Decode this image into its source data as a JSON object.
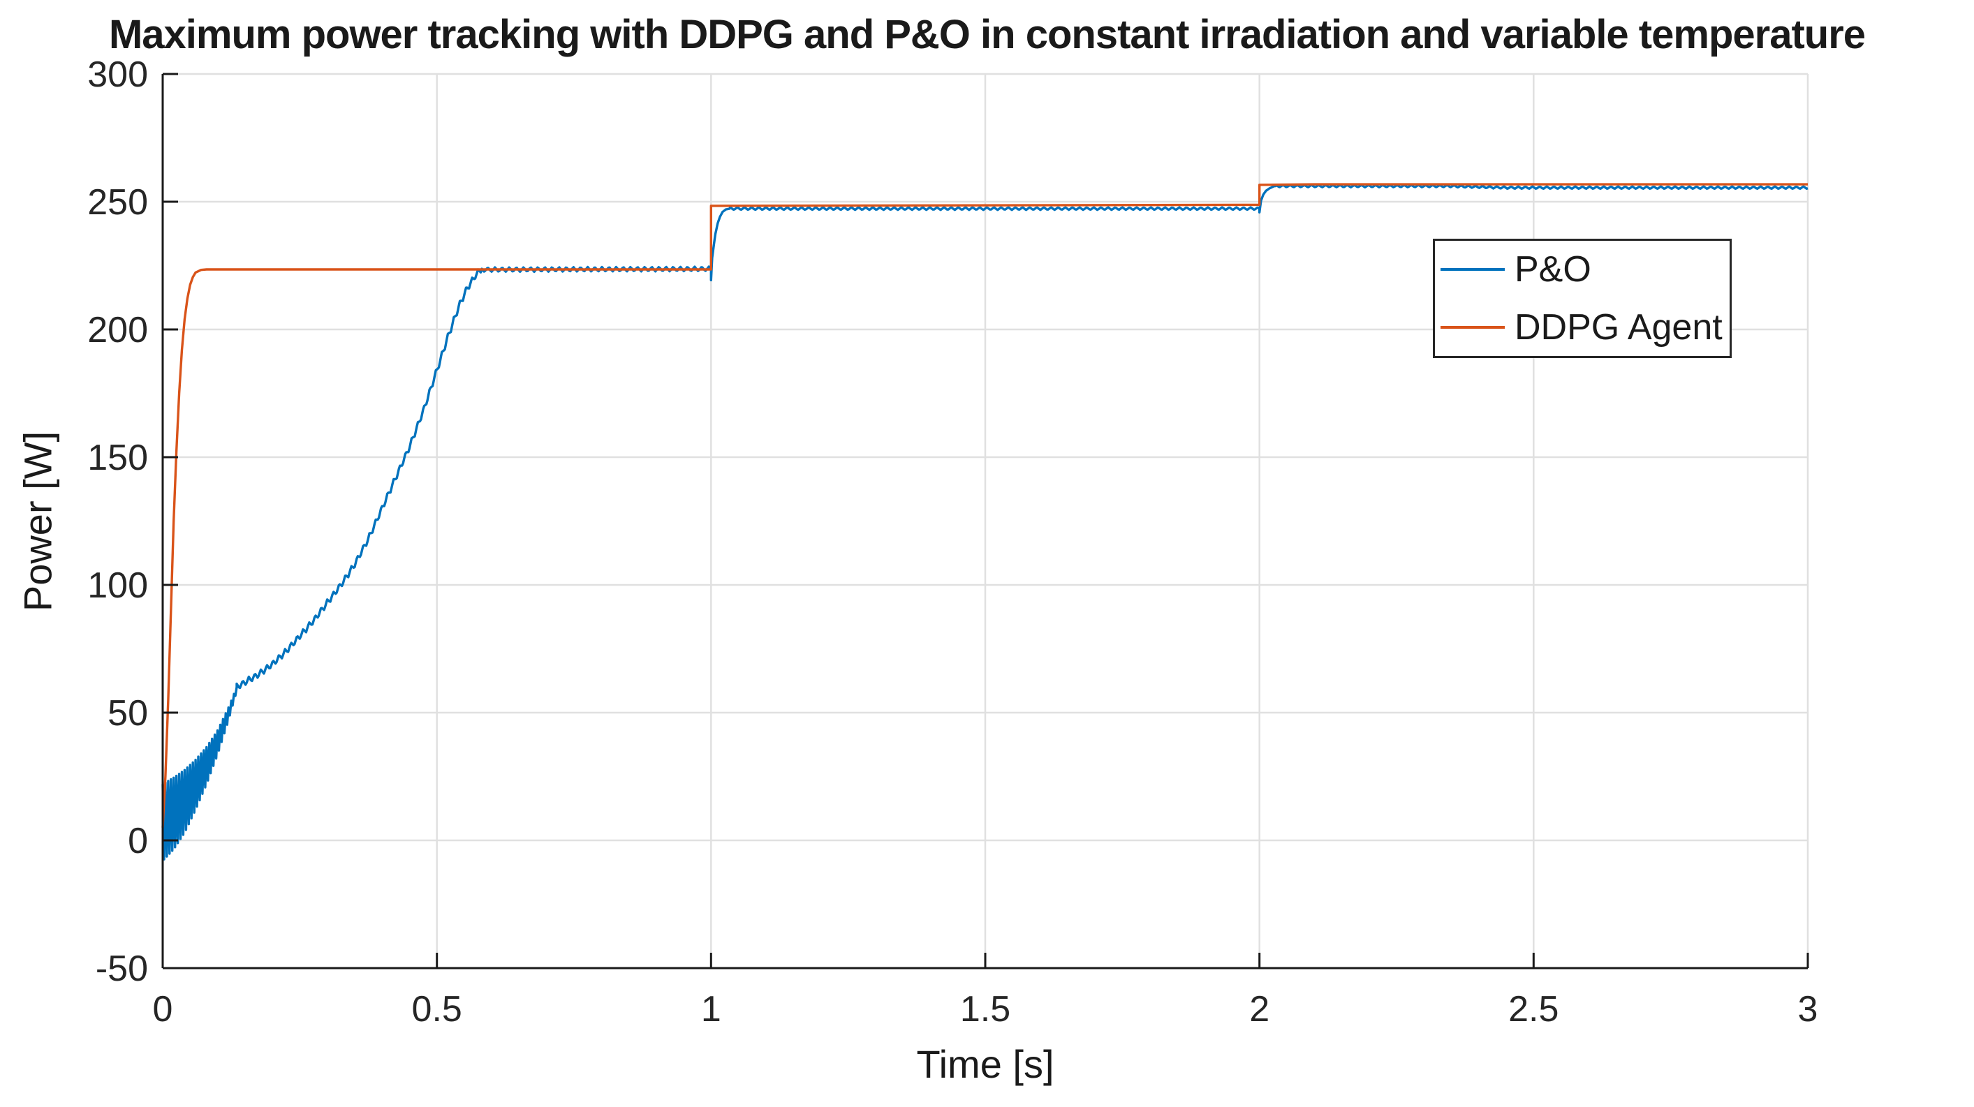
{
  "title": "Maximum power tracking with DDPG and P&O in constant irradiation and variable temperature",
  "axes": {
    "xlabel": "Time [s]",
    "ylabel": "Power [W]"
  },
  "colors": {
    "background": "#ffffff",
    "grid": "#e0e0e0",
    "axis": "#1a1a1a",
    "tick_label": "#262626",
    "legend_border": "#262626",
    "pando_blue": "#0072BD",
    "ddpg_orange": "#D95319"
  },
  "chart_data": {
    "type": "line",
    "title": "Maximum power tracking with DDPG and P&O in constant irradiation and variable temperature",
    "xlabel": "Time [s]",
    "ylabel": "Power [W]",
    "xlim": [
      0,
      3
    ],
    "ylim": [
      -50,
      300
    ],
    "grid": true,
    "legend_position": "inside-upper-right",
    "xticks": [
      0,
      0.5,
      1,
      1.5,
      2,
      2.5,
      3
    ],
    "xtick_labels": [
      "0",
      "0.5",
      "1",
      "1.5",
      "2",
      "2.5",
      "3"
    ],
    "yticks": [
      -50,
      0,
      50,
      100,
      150,
      200,
      250,
      300
    ],
    "ytick_labels": [
      "-50",
      "0",
      "50",
      "100",
      "150",
      "200",
      "250",
      "300"
    ],
    "plateaus_W": [
      223.5,
      248.5,
      256.7
    ],
    "step_times_s": [
      1,
      2
    ],
    "series": [
      {
        "name": "P&O",
        "color": "#0072BD",
        "envelope": {
          "t_end": 0.135,
          "period": 0.005,
          "upper": [
            [
              0,
              22
            ],
            [
              0.02,
              24.5
            ],
            [
              0.04,
              27.5
            ],
            [
              0.06,
              31.5
            ],
            [
              0.08,
              36.5
            ],
            [
              0.1,
              43
            ],
            [
              0.12,
              52
            ],
            [
              0.135,
              60
            ]
          ],
          "lower": [
            [
              0,
              -8
            ],
            [
              0.02,
              -3.5
            ],
            [
              0.04,
              3
            ],
            [
              0.06,
              12
            ],
            [
              0.08,
              22
            ],
            [
              0.1,
              33.5
            ],
            [
              0.12,
              47
            ],
            [
              0.135,
              58.5
            ]
          ]
        },
        "points": [
          [
            0.135,
            60
          ],
          [
            0.155,
            62.5
          ],
          [
            0.175,
            65
          ],
          [
            0.2,
            69
          ],
          [
            0.225,
            74
          ],
          [
            0.25,
            80
          ],
          [
            0.275,
            86
          ],
          [
            0.3,
            93
          ],
          [
            0.325,
            100
          ],
          [
            0.35,
            108
          ],
          [
            0.375,
            118
          ],
          [
            0.4,
            130
          ],
          [
            0.425,
            142
          ],
          [
            0.45,
            154
          ],
          [
            0.475,
            168
          ],
          [
            0.5,
            184
          ],
          [
            0.52,
            197
          ],
          [
            0.54,
            209
          ],
          [
            0.555,
            216
          ],
          [
            0.57,
            221
          ],
          [
            0.58,
            223.4
          ],
          [
            1.0,
            223.7
          ],
          [
            1.0,
            219.5
          ],
          [
            1.002,
            228
          ],
          [
            1.005,
            233
          ],
          [
            1.008,
            237.5
          ],
          [
            1.012,
            241.5
          ],
          [
            1.016,
            244
          ],
          [
            1.021,
            246
          ],
          [
            1.027,
            247
          ],
          [
            1.035,
            247.3
          ],
          [
            2.0,
            247.3
          ],
          [
            2.0,
            245.8
          ],
          [
            2.003,
            250.5
          ],
          [
            2.007,
            252.8
          ],
          [
            2.012,
            254.3
          ],
          [
            2.018,
            255.2
          ],
          [
            2.027,
            256.1
          ],
          [
            2.35,
            256.1
          ],
          [
            2.45,
            255.5
          ],
          [
            3.0,
            255.5
          ]
        ],
        "ripple": [
          [
            0.135,
            0.58,
            1.3,
            0.011
          ],
          [
            0.58,
            1.0,
            0.9,
            0.013
          ],
          [
            1.035,
            2.0,
            0.5,
            0.013
          ],
          [
            2.03,
            3.0,
            0.45,
            0.013
          ]
        ]
      },
      {
        "name": "DDPG Agent",
        "color": "#D95319",
        "points": [
          [
            0,
            5
          ],
          [
            0.005,
            25
          ],
          [
            0.01,
            55
          ],
          [
            0.015,
            90
          ],
          [
            0.02,
            125
          ],
          [
            0.025,
            152
          ],
          [
            0.03,
            175
          ],
          [
            0.035,
            192
          ],
          [
            0.04,
            204
          ],
          [
            0.045,
            212
          ],
          [
            0.05,
            217.5
          ],
          [
            0.055,
            220.5
          ],
          [
            0.06,
            222.3
          ],
          [
            0.07,
            223.3
          ],
          [
            0.08,
            223.5
          ],
          [
            1.0,
            223.5
          ],
          [
            1.0,
            248.4
          ],
          [
            2.0,
            248.8
          ],
          [
            2.0,
            256.6
          ],
          [
            2.1,
            256.8
          ],
          [
            3.0,
            256.8
          ]
        ]
      }
    ]
  }
}
